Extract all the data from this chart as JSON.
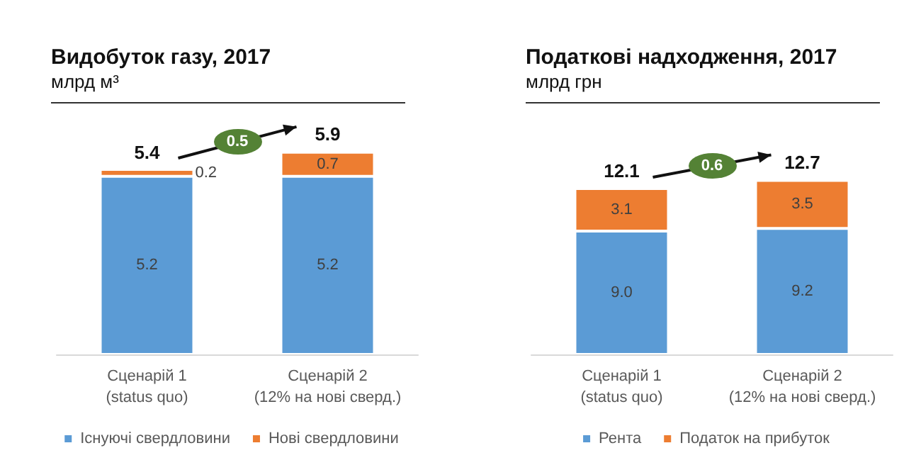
{
  "chart_data": [
    {
      "type": "bar",
      "title": "Видобуток газу, 2017",
      "subtitle": "млрд м³",
      "categories": [
        "Сценарій 1\n(status quo)",
        "Сценарій 2\n(12% на нові сверд.)"
      ],
      "stacked": true,
      "legend": "bottom",
      "totals": [
        "5.4",
        "5.9"
      ],
      "annotations": [
        "0.5"
      ],
      "series": [
        {
          "name": "Існуючі свердловини",
          "color": "#5b9bd5",
          "values": [
            5.2,
            5.2
          ],
          "value_labels": [
            "5.2",
            "5.2"
          ]
        },
        {
          "name": "Нові свердловини",
          "color": "#ed7d31",
          "values": [
            0.2,
            0.7
          ],
          "value_labels": [
            "0.2",
            "0.7"
          ]
        }
      ]
    },
    {
      "type": "bar",
      "title": "Податкові надходження, 2017",
      "subtitle": "млрд грн",
      "categories": [
        "Сценарій 1\n(status quo)",
        "Сценарій 2\n(12% на нові сверд.)"
      ],
      "stacked": true,
      "legend": "bottom",
      "totals": [
        "12.1",
        "12.7"
      ],
      "annotations": [
        "0.6"
      ],
      "series": [
        {
          "name": "Рента",
          "color": "#5b9bd5",
          "values": [
            9.0,
            9.2
          ],
          "value_labels": [
            "9.0",
            "9.2"
          ]
        },
        {
          "name": "Податок на прибуток",
          "color": "#ed7d31",
          "values": [
            3.1,
            3.5
          ],
          "value_labels": [
            "3.1",
            "3.5"
          ]
        }
      ]
    }
  ]
}
